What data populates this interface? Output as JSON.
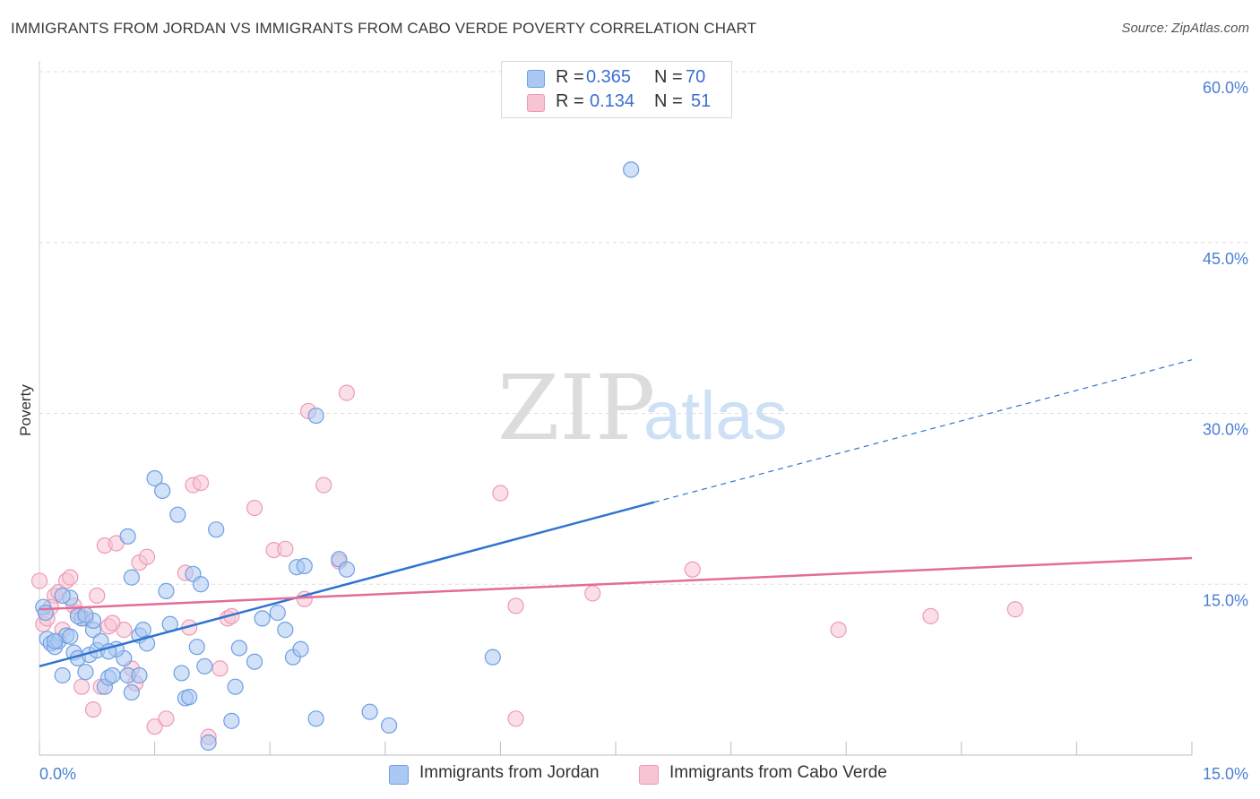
{
  "title": "IMMIGRANTS FROM JORDAN VS IMMIGRANTS FROM CABO VERDE POVERTY CORRELATION CHART",
  "source": "Source: ZipAtlas.com",
  "watermark": {
    "zip": "ZIP",
    "atlas": "atlas"
  },
  "colors": {
    "jordan_fill": "#a9c8f3",
    "jordan_stroke": "#6f9fe0",
    "jordan_line": "#2f74d0",
    "cabo_fill": "#f7c4d4",
    "cabo_stroke": "#ee9ab6",
    "cabo_line": "#e36d99",
    "tick": "#4a7fd4",
    "grid": "#dddddd"
  },
  "legend": {
    "jordan": {
      "r_label": "R = ",
      "r_value": "0.365",
      "n_label": "N = ",
      "n_value": "70"
    },
    "cabo": {
      "r_label": "R = ",
      "r_value": "0.134",
      "n_label": "N = ",
      "n_value": "51"
    }
  },
  "chart_data": {
    "type": "scatter",
    "title": "IMMIGRANTS FROM JORDAN VS IMMIGRANTS FROM CABO VERDE POVERTY CORRELATION CHART",
    "xlabel": "",
    "ylabel": "Poverty",
    "xlim": [
      0,
      15
    ],
    "ylim": [
      0,
      60
    ],
    "x_tick_labels": [
      "0.0%",
      "15.0%"
    ],
    "y_tick_values": [
      15,
      30,
      45,
      60
    ],
    "y_tick_labels": [
      "15.0%",
      "30.0%",
      "45.0%",
      "60.0%"
    ],
    "grid": true,
    "legend_position": "top-center",
    "series": [
      {
        "name": "Immigrants from Jordan",
        "r": 0.365,
        "n": 70,
        "trend": {
          "x0": 0,
          "y0": 7.8,
          "x1": 8.0,
          "y1": 22.2,
          "dashed_to_x": 15.0,
          "dashed_to_y": 34.7
        },
        "points": [
          [
            0.05,
            13.0
          ],
          [
            0.08,
            12.5
          ],
          [
            0.1,
            10.2
          ],
          [
            0.15,
            9.8
          ],
          [
            0.2,
            9.5
          ],
          [
            0.25,
            10.0
          ],
          [
            0.3,
            7.0
          ],
          [
            0.35,
            10.5
          ],
          [
            0.4,
            13.8
          ],
          [
            0.45,
            9.0
          ],
          [
            0.5,
            8.5
          ],
          [
            0.55,
            12.0
          ],
          [
            0.6,
            7.3
          ],
          [
            0.65,
            8.8
          ],
          [
            0.7,
            11.0
          ],
          [
            0.75,
            9.2
          ],
          [
            0.8,
            10.0
          ],
          [
            0.85,
            6.0
          ],
          [
            0.9,
            6.8
          ],
          [
            0.95,
            7.0
          ],
          [
            1.1,
            8.5
          ],
          [
            1.15,
            7.0
          ],
          [
            1.2,
            5.5
          ],
          [
            1.3,
            10.5
          ],
          [
            1.35,
            11.0
          ],
          [
            1.4,
            9.8
          ],
          [
            1.5,
            24.3
          ],
          [
            1.6,
            23.2
          ],
          [
            1.65,
            14.4
          ],
          [
            1.7,
            11.5
          ],
          [
            1.8,
            21.1
          ],
          [
            1.85,
            7.2
          ],
          [
            1.9,
            5.0
          ],
          [
            1.95,
            5.1
          ],
          [
            2.0,
            15.9
          ],
          [
            2.05,
            9.5
          ],
          [
            2.1,
            15.0
          ],
          [
            2.15,
            7.8
          ],
          [
            2.2,
            1.1
          ],
          [
            2.3,
            19.8
          ],
          [
            2.5,
            3.0
          ],
          [
            2.55,
            6.0
          ],
          [
            2.6,
            9.4
          ],
          [
            2.8,
            8.2
          ],
          [
            2.9,
            12.0
          ],
          [
            3.1,
            12.5
          ],
          [
            3.2,
            11.0
          ],
          [
            3.3,
            8.6
          ],
          [
            3.35,
            16.5
          ],
          [
            3.4,
            9.3
          ],
          [
            3.45,
            16.6
          ],
          [
            3.6,
            3.2
          ],
          [
            3.6,
            29.8
          ],
          [
            3.9,
            17.2
          ],
          [
            4.0,
            16.3
          ],
          [
            4.3,
            3.8
          ],
          [
            4.55,
            2.6
          ],
          [
            5.9,
            8.6
          ],
          [
            7.7,
            51.4
          ],
          [
            1.15,
            19.2
          ],
          [
            1.2,
            15.6
          ],
          [
            0.3,
            14.0
          ],
          [
            0.5,
            12.2
          ],
          [
            1.0,
            9.3
          ],
          [
            1.3,
            7.0
          ],
          [
            0.7,
            11.8
          ],
          [
            0.9,
            9.1
          ],
          [
            0.2,
            10.0
          ],
          [
            0.4,
            10.4
          ],
          [
            0.6,
            12.3
          ]
        ]
      },
      {
        "name": "Immigrants from Cabo Verde",
        "r": 0.134,
        "n": 51,
        "trend": {
          "x0": 0,
          "y0": 12.8,
          "x1": 15.0,
          "y1": 17.3
        },
        "points": [
          [
            0.0,
            15.3
          ],
          [
            0.05,
            11.5
          ],
          [
            0.1,
            12.0
          ],
          [
            0.2,
            14.0
          ],
          [
            0.25,
            14.3
          ],
          [
            0.3,
            11.0
          ],
          [
            0.35,
            15.3
          ],
          [
            0.4,
            15.6
          ],
          [
            0.5,
            12.5
          ],
          [
            0.55,
            6.0
          ],
          [
            0.6,
            12.0
          ],
          [
            0.7,
            4.0
          ],
          [
            0.75,
            14.0
          ],
          [
            0.8,
            6.0
          ],
          [
            0.85,
            18.4
          ],
          [
            0.9,
            11.3
          ],
          [
            1.0,
            18.6
          ],
          [
            1.1,
            11.0
          ],
          [
            1.2,
            7.6
          ],
          [
            1.25,
            6.3
          ],
          [
            1.3,
            16.9
          ],
          [
            1.4,
            17.4
          ],
          [
            1.5,
            2.5
          ],
          [
            1.65,
            3.2
          ],
          [
            1.9,
            16.0
          ],
          [
            1.95,
            11.2
          ],
          [
            2.0,
            23.7
          ],
          [
            2.1,
            23.9
          ],
          [
            2.2,
            1.6
          ],
          [
            2.35,
            7.6
          ],
          [
            2.45,
            12.0
          ],
          [
            2.5,
            12.2
          ],
          [
            2.8,
            21.7
          ],
          [
            3.05,
            18.0
          ],
          [
            3.2,
            18.1
          ],
          [
            3.45,
            13.7
          ],
          [
            3.5,
            30.2
          ],
          [
            3.7,
            23.7
          ],
          [
            3.9,
            17.0
          ],
          [
            4.0,
            31.8
          ],
          [
            6.0,
            23.0
          ],
          [
            6.2,
            13.1
          ],
          [
            6.2,
            3.2
          ],
          [
            7.2,
            14.2
          ],
          [
            8.5,
            16.3
          ],
          [
            10.4,
            11.0
          ],
          [
            11.6,
            12.2
          ],
          [
            12.7,
            12.8
          ],
          [
            0.15,
            13.0
          ],
          [
            0.45,
            13.1
          ],
          [
            0.95,
            11.6
          ]
        ]
      }
    ]
  },
  "bottom_legend": {
    "jordan": "Immigrants from Jordan",
    "cabo": "Immigrants from Cabo Verde"
  }
}
